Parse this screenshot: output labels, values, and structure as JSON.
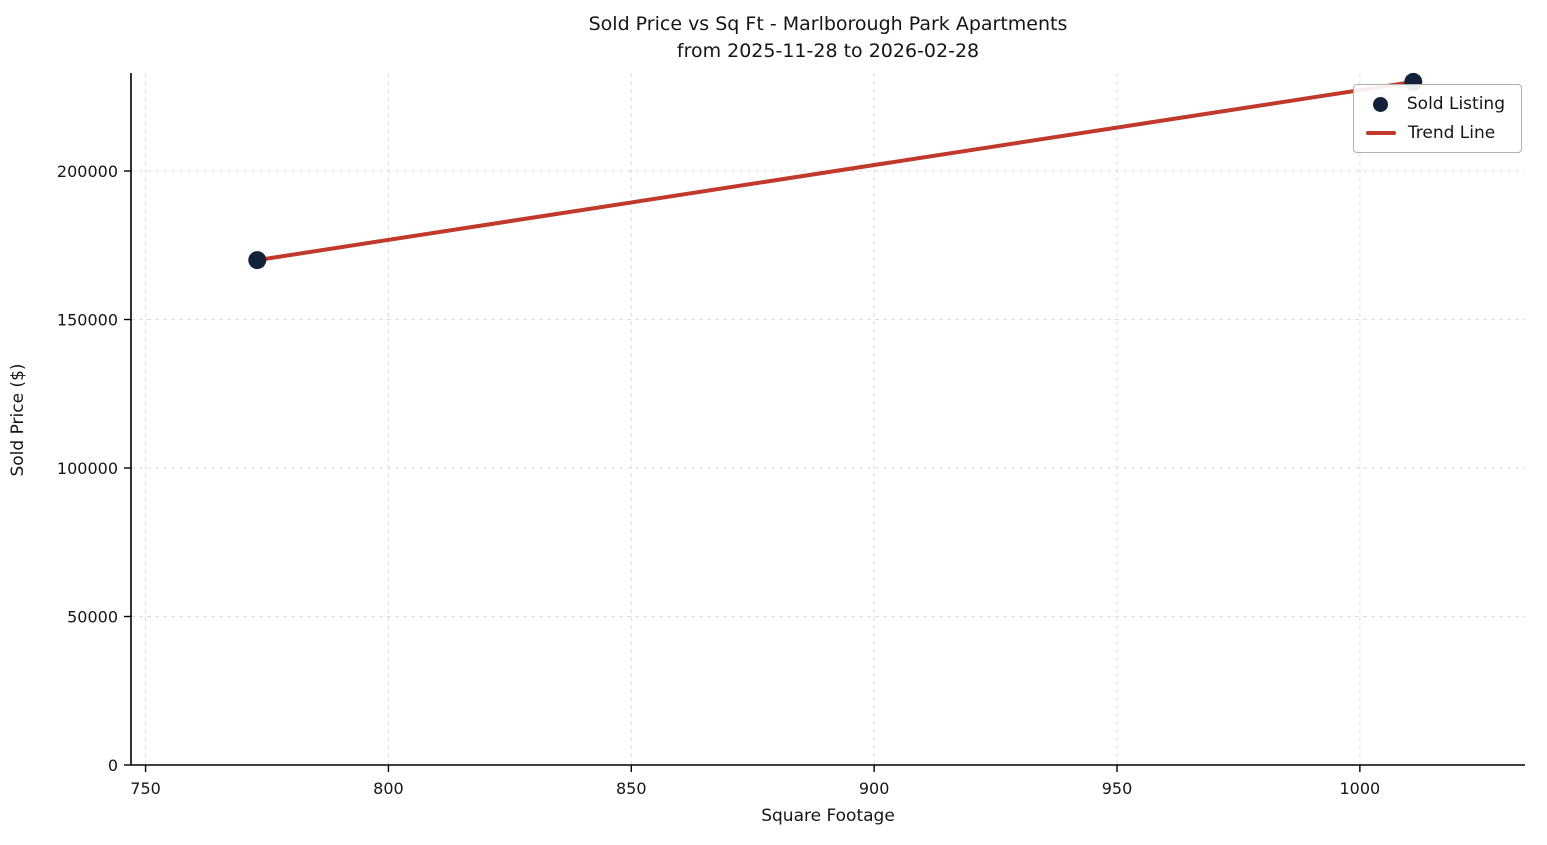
{
  "chart_data": {
    "type": "scatter",
    "title": "Sold Price vs Sq Ft - Marlborough Park Apartments",
    "subtitle": "from 2025-11-28 to 2026-02-28",
    "xlabel": "Square Footage",
    "ylabel": "Sold Price ($)",
    "xlim": [
      747,
      1034
    ],
    "ylim": [
      0,
      233000
    ],
    "xticks": [
      750,
      800,
      850,
      900,
      950,
      1000
    ],
    "yticks": [
      0,
      50000,
      100000,
      150000,
      200000
    ],
    "grid": true,
    "grid_style": "dashed",
    "legend_position": "upper right",
    "series": [
      {
        "name": "Trend Line",
        "kind": "line",
        "color": "#c0392b",
        "points": [
          {
            "x": 773,
            "y": 170000
          },
          {
            "x": 1011,
            "y": 230000
          }
        ]
      },
      {
        "name": "Sold Listing",
        "kind": "scatter",
        "color": "#14213a",
        "points": [
          {
            "x": 773,
            "y": 170000
          },
          {
            "x": 1011,
            "y": 230000
          }
        ]
      }
    ],
    "legend": [
      {
        "label": "Sold Listing",
        "marker": "dot",
        "color": "#14213a"
      },
      {
        "label": "Trend Line",
        "marker": "line",
        "color": "#c0392b"
      }
    ]
  },
  "colors": {
    "point": "#14213a",
    "trend": "#c0392b",
    "grid": "#dcdcdc",
    "spine": "#000000",
    "tick_text": "#151515",
    "background": "#ffffff"
  }
}
